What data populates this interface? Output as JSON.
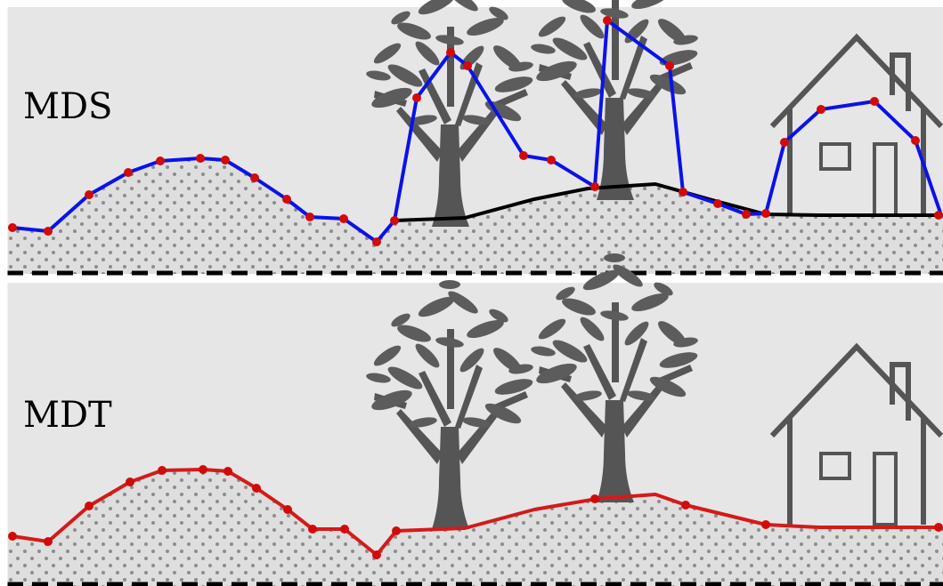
{
  "labels": {
    "mds": "MDS",
    "mdt": "MDT"
  },
  "colors": {
    "background": "#e6e6e6",
    "ground_fill": "#dedede",
    "ground_dots": "#8c8c8c",
    "mds_line": "#0b12e8",
    "mdt_line": "#d41a1a",
    "sample_point": "#d30a0a",
    "terrain_line": "#000000",
    "objects": "#555555",
    "baseline": "#000000"
  },
  "icons": [
    "tree-icon",
    "house-icon"
  ]
}
